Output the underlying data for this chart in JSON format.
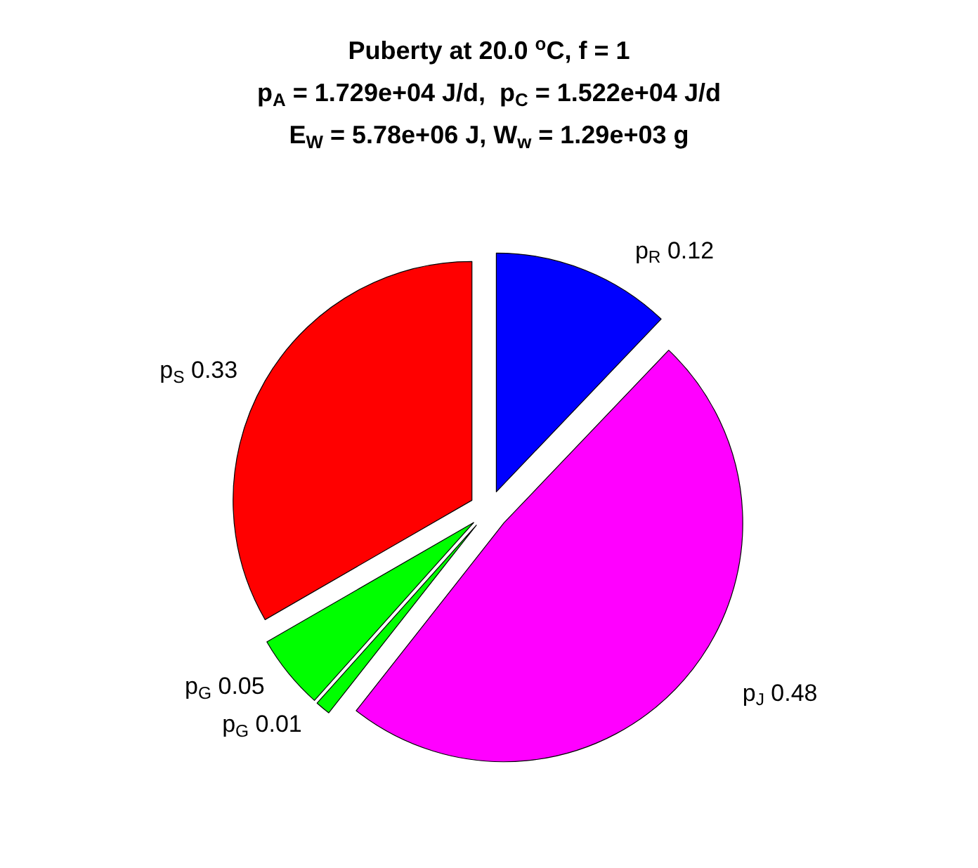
{
  "chart_data": {
    "type": "pie",
    "title": "Puberty at 20.0 $^{o}$C, f = 1\np$_{A}$ = 1.729e+04 J/d,  p$_{C}$ = 1.522e+04 J/d\nE$_{W}$ = 5.78e+06 J, W$_{w}$ = 1.29e+03 g",
    "categories": [
      "p$_{R}$",
      "p$_{J}$",
      "p$_{G}$",
      "p$_{G}$",
      "p$_{S}$"
    ],
    "values": [
      0.12,
      0.48,
      0.01,
      0.05,
      0.33
    ],
    "colors": [
      "#0000ff",
      "#ff00ff",
      "#00ff00",
      "#00ff00",
      "#ff0000"
    ],
    "data_labels": true
  }
}
